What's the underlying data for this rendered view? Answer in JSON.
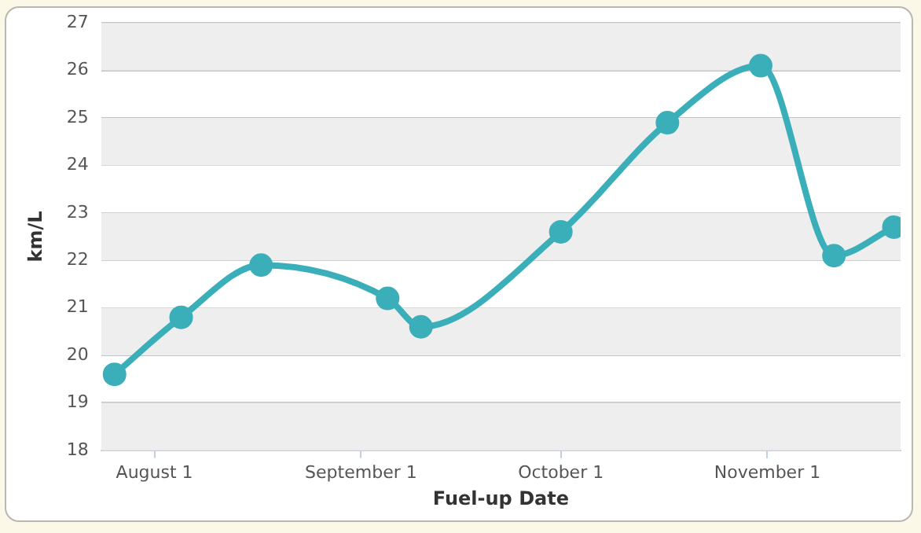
{
  "chart_data": {
    "type": "line",
    "xlabel": "Fuel-up Date",
    "ylabel": "km/L",
    "x": [
      "--07-26",
      "--08-05",
      "--08-17",
      "--09-05",
      "--09-10",
      "--10-01",
      "--10-17",
      "--10-31",
      "--11-11",
      "--11-20"
    ],
    "series": [
      {
        "color": "#3aafb9",
        "values": [
          19.6,
          20.8,
          21.9,
          21.2,
          20.6,
          22.6,
          24.9,
          26.1,
          22.1,
          22.7
        ]
      }
    ],
    "xlim": [
      "--07-24",
      "--11-21"
    ],
    "xticks": [
      {
        "value": "--08-01",
        "label": "August 1"
      },
      {
        "value": "--09-01",
        "label": "September 1"
      },
      {
        "value": "--10-01",
        "label": "October 1"
      },
      {
        "value": "--11-01",
        "label": "November 1"
      }
    ],
    "ylim": [
      18,
      27
    ],
    "yticks": [
      18,
      19,
      20,
      21,
      22,
      23,
      24,
      25,
      26,
      27
    ],
    "grid": "y",
    "legend": false,
    "marker": "circle",
    "line_style": "solid"
  }
}
